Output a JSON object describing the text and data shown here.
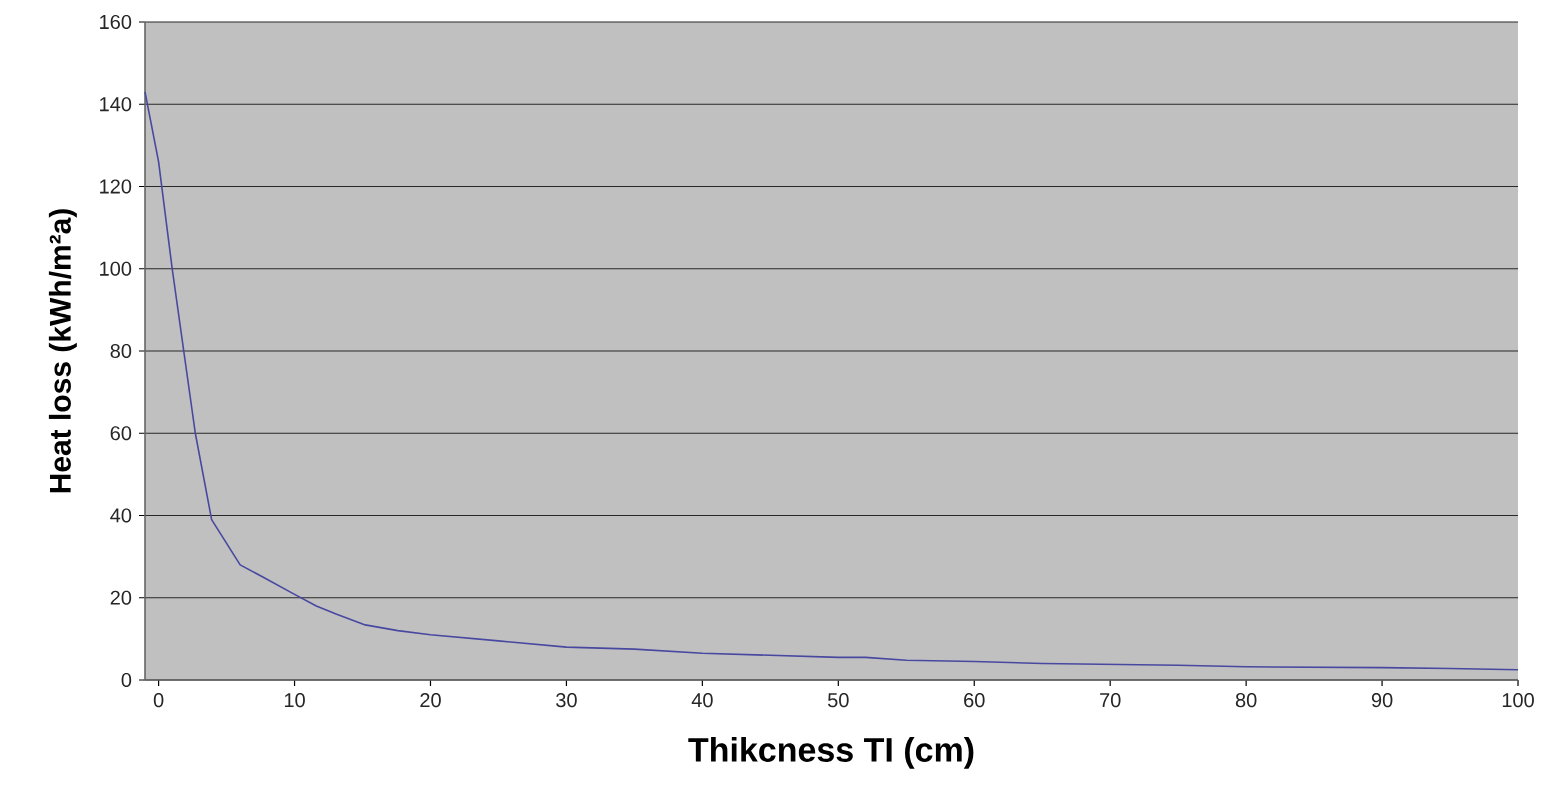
{
  "chart_data": {
    "type": "line",
    "xlabel": "Thikcness TI (cm)",
    "ylabel": "Heat loss (kWh/m²a)",
    "xlim": [
      -1,
      100
    ],
    "ylim": [
      0,
      160
    ],
    "xticks": [
      0,
      10,
      20,
      30,
      40,
      50,
      60,
      70,
      80,
      90,
      100
    ],
    "yticks": [
      0,
      20,
      40,
      60,
      80,
      100,
      120,
      140,
      160
    ],
    "grid": "y",
    "marker": "none",
    "line_style": "solid",
    "series": [
      {
        "color": "#4848a0",
        "x": [
          -1,
          0,
          1,
          2.7,
          3.9,
          6,
          7.7,
          9.9,
          11.6,
          13.1,
          15.2,
          17.6,
          20,
          25,
          30,
          35,
          40,
          45,
          50,
          52,
          55,
          60,
          65,
          70,
          75,
          80,
          90,
          95,
          100
        ],
        "values": [
          143,
          126,
          100,
          60,
          39,
          28,
          25,
          21,
          18,
          16,
          13.4,
          12,
          11,
          9.5,
          8,
          7.5,
          6.5,
          6,
          5.5,
          5.5,
          4.8,
          4.5,
          4,
          3.8,
          3.6,
          3.2,
          3,
          2.8,
          2.5
        ]
      }
    ]
  }
}
